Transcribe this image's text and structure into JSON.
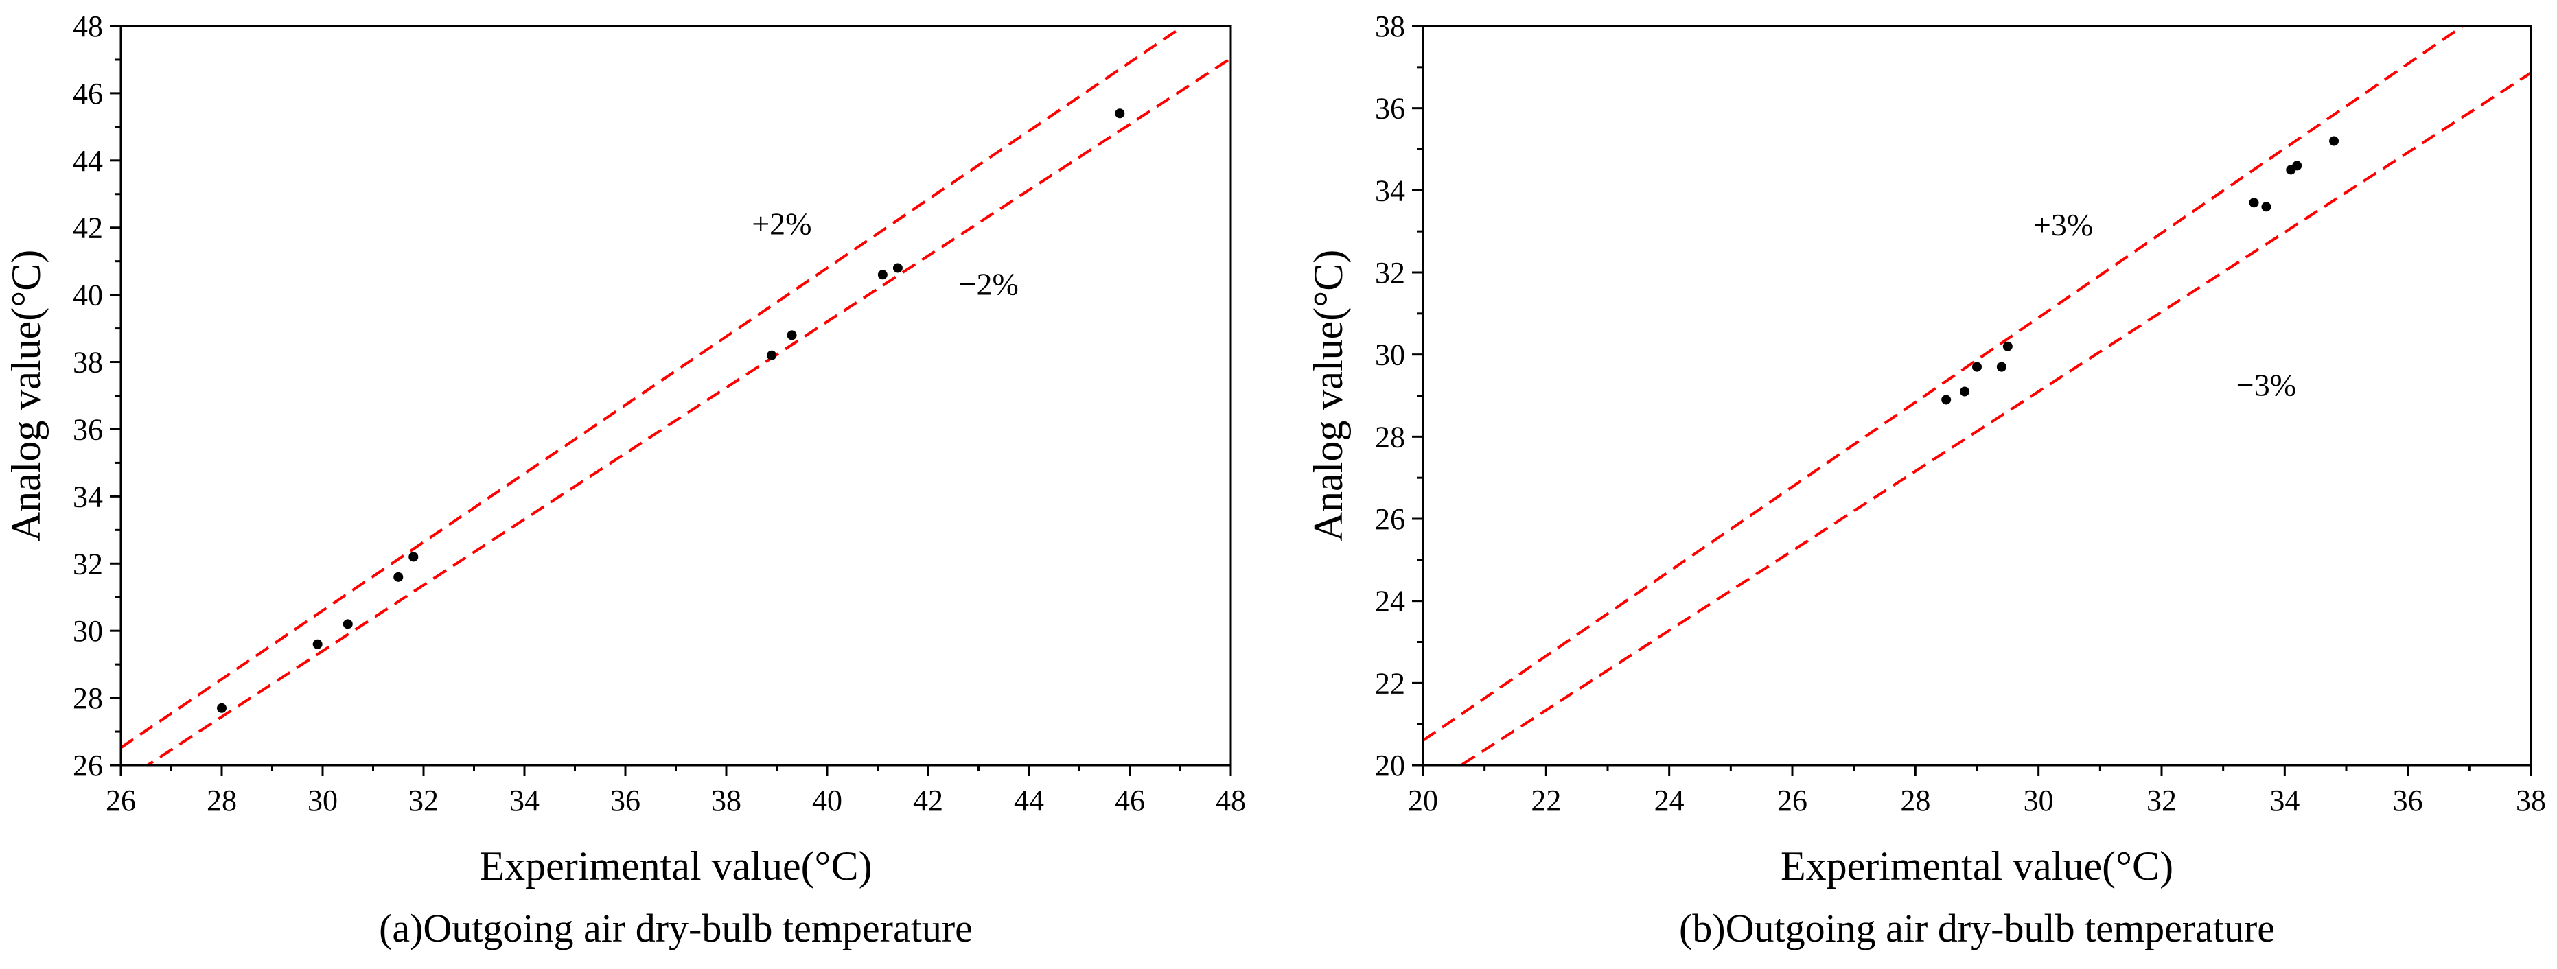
{
  "colors": {
    "band_line": "#ff0000",
    "points": "#000000",
    "axes": "#000000",
    "background": "#ffffff"
  },
  "chart_data": [
    {
      "type": "scatter",
      "caption": "(a)Outgoing air dry-bulb temperature",
      "xlabel": "Experimental value(°C)",
      "ylabel": "Analog value(°C)",
      "xlim": [
        26,
        48
      ],
      "ylim": [
        26,
        48
      ],
      "xticks": [
        26,
        28,
        30,
        32,
        34,
        36,
        38,
        40,
        42,
        44,
        46,
        48
      ],
      "yticks": [
        26,
        28,
        30,
        32,
        34,
        36,
        38,
        40,
        42,
        44,
        46,
        48
      ],
      "tick_labels_x": [
        "26",
        "28",
        "30",
        "32",
        "34",
        "36",
        "38",
        "40",
        "42",
        "44",
        "46",
        "48"
      ],
      "tick_labels_y": [
        "26",
        "28",
        "30",
        "32",
        "34",
        "36",
        "38",
        "40",
        "42",
        "44",
        "46",
        "48"
      ],
      "points": [
        {
          "x": 28.0,
          "y": 27.7
        },
        {
          "x": 29.9,
          "y": 29.6
        },
        {
          "x": 30.5,
          "y": 30.2
        },
        {
          "x": 31.5,
          "y": 31.6
        },
        {
          "x": 31.8,
          "y": 32.2
        },
        {
          "x": 38.9,
          "y": 38.2
        },
        {
          "x": 39.3,
          "y": 38.8
        },
        {
          "x": 41.1,
          "y": 40.6
        },
        {
          "x": 41.4,
          "y": 40.8
        },
        {
          "x": 45.8,
          "y": 45.4
        }
      ],
      "bands": [
        {
          "label": "+2%",
          "factor": 1.02,
          "label_at": [
            39.1,
            41.8
          ]
        },
        {
          "label": "−2%",
          "factor": 0.98,
          "label_at": [
            43.2,
            40.0
          ]
        }
      ]
    },
    {
      "type": "scatter",
      "caption": "(b)Outgoing air dry-bulb temperature",
      "xlabel": "Experimental value(°C)",
      "ylabel": "Analog value(°C)",
      "xlim": [
        20,
        38
      ],
      "ylim": [
        20,
        38
      ],
      "xticks": [
        20,
        22,
        24,
        26,
        28,
        30,
        32,
        34,
        36,
        38
      ],
      "yticks": [
        20,
        22,
        24,
        26,
        28,
        30,
        32,
        34,
        36,
        38
      ],
      "tick_labels_x": [
        "20",
        "22",
        "24",
        "26",
        "28",
        "30",
        "32",
        "34",
        "36",
        "38"
      ],
      "tick_labels_y": [
        "20",
        "22",
        "24",
        "26",
        "28",
        "30",
        "32",
        "34",
        "36",
        "38"
      ],
      "points": [
        {
          "x": 28.5,
          "y": 28.9
        },
        {
          "x": 28.8,
          "y": 29.1
        },
        {
          "x": 29.0,
          "y": 29.7
        },
        {
          "x": 29.4,
          "y": 29.7
        },
        {
          "x": 29.5,
          "y": 30.2
        },
        {
          "x": 33.5,
          "y": 33.7
        },
        {
          "x": 33.7,
          "y": 33.6
        },
        {
          "x": 34.1,
          "y": 34.5
        },
        {
          "x": 34.2,
          "y": 34.6
        },
        {
          "x": 34.8,
          "y": 35.2
        }
      ],
      "bands": [
        {
          "label": "+3%",
          "factor": 1.03,
          "label_at": [
            30.4,
            32.9
          ]
        },
        {
          "label": "−3%",
          "factor": 0.97,
          "label_at": [
            33.7,
            29.0
          ]
        }
      ]
    }
  ]
}
